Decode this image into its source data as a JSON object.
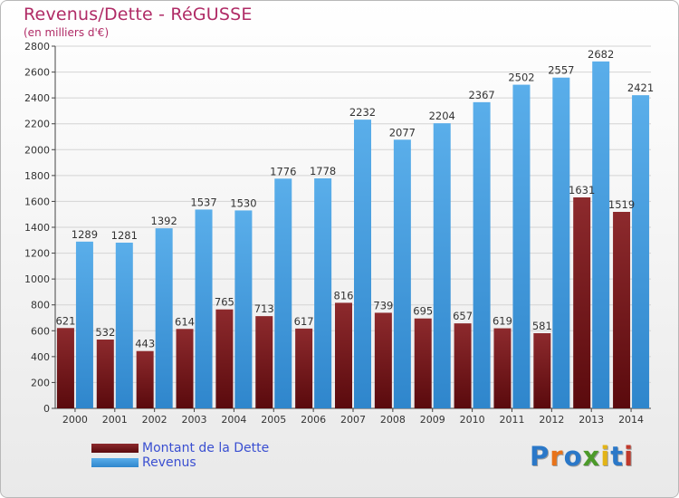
{
  "title": "Revenus/Dette - RéGUSSE",
  "subtitle": "(en milliers d'€)",
  "colors": {
    "title": "#b02b66",
    "dette": "#7a1f22",
    "revenus": "#4aa2e4",
    "legend_text": "#3a4fd1"
  },
  "legend": [
    {
      "label": "Montant de la Dette",
      "color": "#7a1f22"
    },
    {
      "label": "Revenus",
      "color": "#4aa2e4"
    }
  ],
  "logo": {
    "letters": [
      "P",
      "r",
      "o",
      "x",
      "i",
      "t",
      "i"
    ],
    "colors": [
      "#2b78c8",
      "#e8731a",
      "#2b78c8",
      "#4c9a2a",
      "#e3b416",
      "#2b78c8",
      "#c0392b"
    ]
  },
  "chart_data": {
    "type": "bar",
    "categories": [
      "2000",
      "2001",
      "2002",
      "2003",
      "2004",
      "2005",
      "2006",
      "2007",
      "2008",
      "2009",
      "2010",
      "2011",
      "2012",
      "2013",
      "2014"
    ],
    "series": [
      {
        "name": "Montant de la Dette",
        "values": [
          621,
          532,
          443,
          614,
          765,
          713,
          617,
          816,
          739,
          695,
          657,
          619,
          581,
          1631,
          1519
        ],
        "labels": [
          "621",
          "532",
          "443",
          "614",
          "765",
          "713",
          "617",
          "816",
          "739",
          "695",
          "657",
          "619",
          "581",
          "1631",
          "1519"
        ]
      },
      {
        "name": "Revenus",
        "values": [
          1289,
          1281,
          1392,
          1537,
          1530,
          1776,
          1778,
          2232,
          2077,
          2204,
          2367,
          2502,
          2557,
          2682,
          2421
        ],
        "labels": [
          "1289",
          "1281",
          "1392",
          "1537",
          "1530",
          "1776",
          "1778",
          "2232",
          "2077",
          "2204",
          "2367",
          "2502",
          "2557",
          "2682",
          "2421"
        ]
      }
    ],
    "ylim": [
      0,
      2800
    ],
    "yticks": [
      0,
      200,
      400,
      600,
      800,
      1000,
      1200,
      1400,
      1600,
      1800,
      2000,
      2200,
      2400,
      2600,
      2800
    ],
    "grid": true,
    "legend_position": "bottom-left"
  }
}
